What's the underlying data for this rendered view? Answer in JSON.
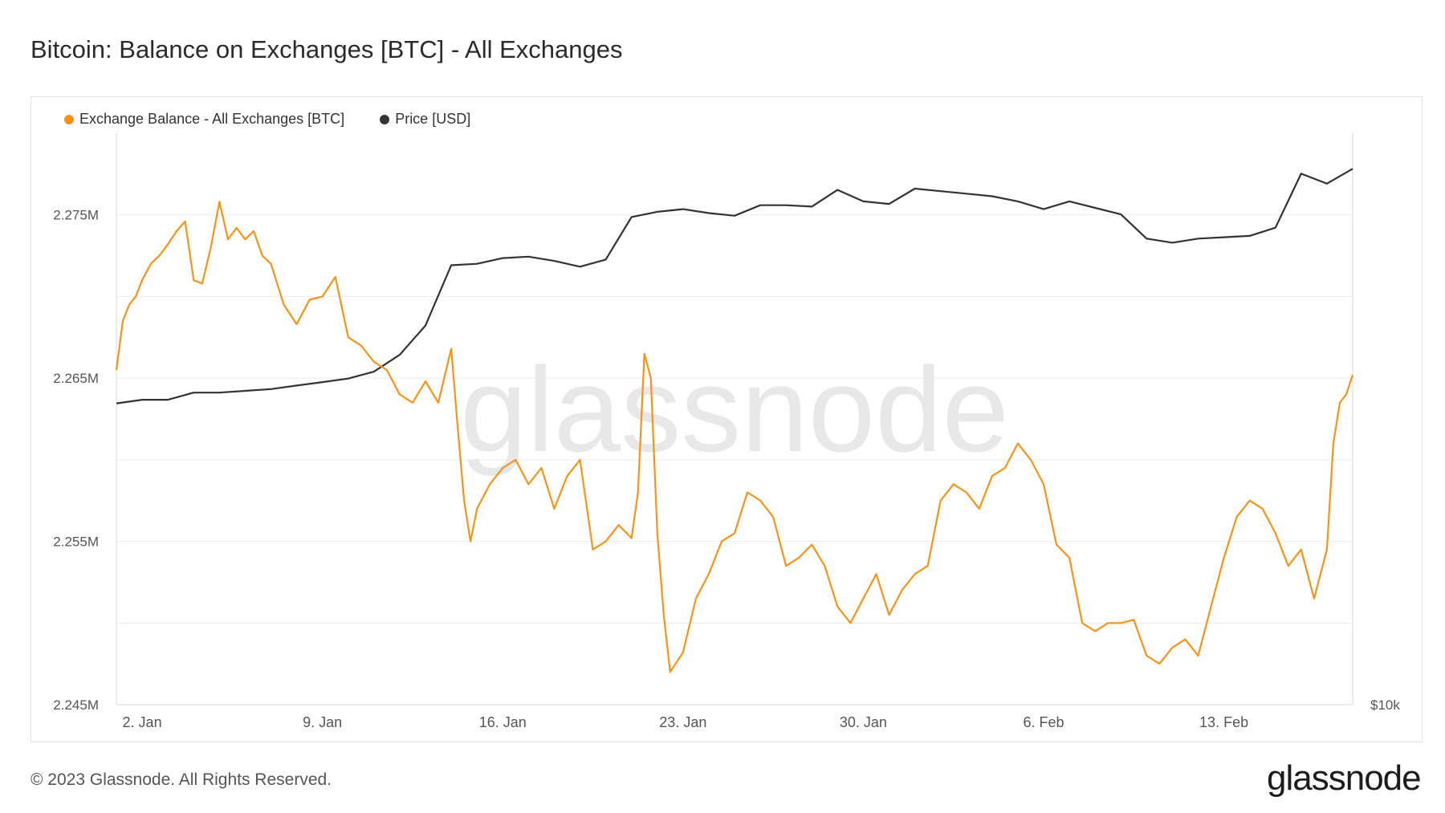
{
  "header": {
    "title": "Bitcoin: Balance on Exchanges [BTC] - All Exchanges"
  },
  "footer": {
    "copyright": "© 2023 Glassnode. All Rights Reserved.",
    "logo_text": "glassnode"
  },
  "watermark": "glassnode",
  "colors": {
    "balance": "#f7931a",
    "price": "#333333",
    "grid": "#ececec",
    "axis": "#d8d8d8",
    "tick_text": "#555555",
    "watermark": "#e8e8e8"
  },
  "chart_data": {
    "type": "line",
    "title": "Bitcoin: Balance on Exchanges [BTC] - All Exchanges",
    "legend_position": "top-left",
    "grid": true,
    "x_range": [
      "2023-01-01",
      "2023-02-18"
    ],
    "x_ticks": [
      {
        "date": "2023-01-02",
        "label": "2. Jan"
      },
      {
        "date": "2023-01-09",
        "label": "9. Jan"
      },
      {
        "date": "2023-01-16",
        "label": "16. Jan"
      },
      {
        "date": "2023-01-23",
        "label": "23. Jan"
      },
      {
        "date": "2023-01-30",
        "label": "30. Jan"
      },
      {
        "date": "2023-02-06",
        "label": "6. Feb"
      },
      {
        "date": "2023-02-13",
        "label": "13. Feb"
      }
    ],
    "y_left": {
      "range": [
        2245000,
        2280000
      ],
      "ticks": [
        {
          "value": 2245000,
          "label": "2.245M"
        },
        {
          "value": 2255000,
          "label": "2.255M"
        },
        {
          "value": 2265000,
          "label": "2.265M"
        },
        {
          "value": 2275000,
          "label": "2.275M"
        }
      ]
    },
    "y_right": {
      "scale": "log",
      "range": [
        10000,
        26000
      ],
      "ticks": [
        {
          "value": 10000,
          "label": "$10k"
        }
      ]
    },
    "series": [
      {
        "name": "Exchange Balance - All Exchanges [BTC]",
        "axis": "left",
        "points": [
          [
            "2023-01-01T00:00",
            2265500
          ],
          [
            "2023-01-01T06:00",
            2268500
          ],
          [
            "2023-01-01T12:00",
            2269500
          ],
          [
            "2023-01-01T18:00",
            2270000
          ],
          [
            "2023-01-02T00:00",
            2271000
          ],
          [
            "2023-01-02T08:00",
            2272000
          ],
          [
            "2023-01-02T16:00",
            2272500
          ],
          [
            "2023-01-03T00:00",
            2273200
          ],
          [
            "2023-01-03T08:00",
            2274000
          ],
          [
            "2023-01-03T16:00",
            2274600
          ],
          [
            "2023-01-04T00:00",
            2271000
          ],
          [
            "2023-01-04T08:00",
            2270800
          ],
          [
            "2023-01-04T16:00",
            2273000
          ],
          [
            "2023-01-05T00:00",
            2275800
          ],
          [
            "2023-01-05T08:00",
            2273500
          ],
          [
            "2023-01-05T16:00",
            2274200
          ],
          [
            "2023-01-06T00:00",
            2273500
          ],
          [
            "2023-01-06T08:00",
            2274000
          ],
          [
            "2023-01-06T16:00",
            2272500
          ],
          [
            "2023-01-07T00:00",
            2272000
          ],
          [
            "2023-01-07T12:00",
            2269500
          ],
          [
            "2023-01-08T00:00",
            2268300
          ],
          [
            "2023-01-08T12:00",
            2269800
          ],
          [
            "2023-01-09T00:00",
            2270000
          ],
          [
            "2023-01-09T12:00",
            2271200
          ],
          [
            "2023-01-10T00:00",
            2267500
          ],
          [
            "2023-01-10T12:00",
            2267000
          ],
          [
            "2023-01-11T00:00",
            2266000
          ],
          [
            "2023-01-11T12:00",
            2265500
          ],
          [
            "2023-01-12T00:00",
            2264000
          ],
          [
            "2023-01-12T12:00",
            2263500
          ],
          [
            "2023-01-13T00:00",
            2264800
          ],
          [
            "2023-01-13T12:00",
            2263500
          ],
          [
            "2023-01-14T00:00",
            2266800
          ],
          [
            "2023-01-14T06:00",
            2262000
          ],
          [
            "2023-01-14T12:00",
            2257500
          ],
          [
            "2023-01-14T18:00",
            2255000
          ],
          [
            "2023-01-15T00:00",
            2257000
          ],
          [
            "2023-01-15T12:00",
            2258500
          ],
          [
            "2023-01-16T00:00",
            2259500
          ],
          [
            "2023-01-16T12:00",
            2260000
          ],
          [
            "2023-01-17T00:00",
            2258500
          ],
          [
            "2023-01-17T12:00",
            2259500
          ],
          [
            "2023-01-18T00:00",
            2257000
          ],
          [
            "2023-01-18T12:00",
            2259000
          ],
          [
            "2023-01-19T00:00",
            2260000
          ],
          [
            "2023-01-19T12:00",
            2254500
          ],
          [
            "2023-01-20T00:00",
            2255000
          ],
          [
            "2023-01-20T12:00",
            2256000
          ],
          [
            "2023-01-21T00:00",
            2255200
          ],
          [
            "2023-01-21T06:00",
            2258000
          ],
          [
            "2023-01-21T12:00",
            2266500
          ],
          [
            "2023-01-21T18:00",
            2265000
          ],
          [
            "2023-01-22T00:00",
            2255500
          ],
          [
            "2023-01-22T06:00",
            2250500
          ],
          [
            "2023-01-22T12:00",
            2247000
          ],
          [
            "2023-01-23T00:00",
            2248200
          ],
          [
            "2023-01-23T12:00",
            2251500
          ],
          [
            "2023-01-24T00:00",
            2253000
          ],
          [
            "2023-01-24T12:00",
            2255000
          ],
          [
            "2023-01-25T00:00",
            2255500
          ],
          [
            "2023-01-25T12:00",
            2258000
          ],
          [
            "2023-01-26T00:00",
            2257500
          ],
          [
            "2023-01-26T12:00",
            2256500
          ],
          [
            "2023-01-27T00:00",
            2253500
          ],
          [
            "2023-01-27T12:00",
            2254000
          ],
          [
            "2023-01-28T00:00",
            2254800
          ],
          [
            "2023-01-28T12:00",
            2253500
          ],
          [
            "2023-01-29T00:00",
            2251000
          ],
          [
            "2023-01-29T12:00",
            2250000
          ],
          [
            "2023-01-30T00:00",
            2251500
          ],
          [
            "2023-01-30T12:00",
            2253000
          ],
          [
            "2023-01-31T00:00",
            2250500
          ],
          [
            "2023-01-31T12:00",
            2252000
          ],
          [
            "2023-02-01T00:00",
            2253000
          ],
          [
            "2023-02-01T12:00",
            2253500
          ],
          [
            "2023-02-02T00:00",
            2257500
          ],
          [
            "2023-02-02T12:00",
            2258500
          ],
          [
            "2023-02-03T00:00",
            2258000
          ],
          [
            "2023-02-03T12:00",
            2257000
          ],
          [
            "2023-02-04T00:00",
            2259000
          ],
          [
            "2023-02-04T12:00",
            2259500
          ],
          [
            "2023-02-05T00:00",
            2261000
          ],
          [
            "2023-02-05T12:00",
            2260000
          ],
          [
            "2023-02-06T00:00",
            2258500
          ],
          [
            "2023-02-06T12:00",
            2254800
          ],
          [
            "2023-02-07T00:00",
            2254000
          ],
          [
            "2023-02-07T12:00",
            2250000
          ],
          [
            "2023-02-08T00:00",
            2249500
          ],
          [
            "2023-02-08T12:00",
            2250000
          ],
          [
            "2023-02-09T00:00",
            2250000
          ],
          [
            "2023-02-09T12:00",
            2250200
          ],
          [
            "2023-02-10T00:00",
            2248000
          ],
          [
            "2023-02-10T12:00",
            2247500
          ],
          [
            "2023-02-11T00:00",
            2248500
          ],
          [
            "2023-02-11T12:00",
            2249000
          ],
          [
            "2023-02-12T00:00",
            2248000
          ],
          [
            "2023-02-12T12:00",
            2251000
          ],
          [
            "2023-02-13T00:00",
            2254000
          ],
          [
            "2023-02-13T12:00",
            2256500
          ],
          [
            "2023-02-14T00:00",
            2257500
          ],
          [
            "2023-02-14T12:00",
            2257000
          ],
          [
            "2023-02-15T00:00",
            2255500
          ],
          [
            "2023-02-15T12:00",
            2253500
          ],
          [
            "2023-02-16T00:00",
            2254500
          ],
          [
            "2023-02-16T12:00",
            2251500
          ],
          [
            "2023-02-17T00:00",
            2254500
          ],
          [
            "2023-02-17T06:00",
            2261000
          ],
          [
            "2023-02-17T12:00",
            2263500
          ],
          [
            "2023-02-17T18:00",
            2264000
          ],
          [
            "2023-02-18T00:00",
            2265200
          ]
        ]
      },
      {
        "name": "Price [USD]",
        "axis": "right",
        "points": [
          [
            "2023-01-01T00:00",
            16550
          ],
          [
            "2023-01-02T00:00",
            16650
          ],
          [
            "2023-01-03T00:00",
            16650
          ],
          [
            "2023-01-04T00:00",
            16850
          ],
          [
            "2023-01-05T00:00",
            16850
          ],
          [
            "2023-01-06T00:00",
            16900
          ],
          [
            "2023-01-07T00:00",
            16950
          ],
          [
            "2023-01-08T00:00",
            17050
          ],
          [
            "2023-01-09T00:00",
            17150
          ],
          [
            "2023-01-10T00:00",
            17250
          ],
          [
            "2023-01-11T00:00",
            17450
          ],
          [
            "2023-01-12T00:00",
            17950
          ],
          [
            "2023-01-13T00:00",
            18850
          ],
          [
            "2023-01-14T00:00",
            20850
          ],
          [
            "2023-01-15T00:00",
            20900
          ],
          [
            "2023-01-16T00:00",
            21100
          ],
          [
            "2023-01-17T00:00",
            21150
          ],
          [
            "2023-01-18T00:00",
            21000
          ],
          [
            "2023-01-19T00:00",
            20800
          ],
          [
            "2023-01-20T00:00",
            21050
          ],
          [
            "2023-01-21T00:00",
            22600
          ],
          [
            "2023-01-22T00:00",
            22800
          ],
          [
            "2023-01-23T00:00",
            22900
          ],
          [
            "2023-01-24T00:00",
            22750
          ],
          [
            "2023-01-25T00:00",
            22650
          ],
          [
            "2023-01-26T00:00",
            23050
          ],
          [
            "2023-01-27T00:00",
            23050
          ],
          [
            "2023-01-28T00:00",
            23000
          ],
          [
            "2023-01-29T00:00",
            23650
          ],
          [
            "2023-01-30T00:00",
            23200
          ],
          [
            "2023-01-31T00:00",
            23100
          ],
          [
            "2023-02-01T00:00",
            23700
          ],
          [
            "2023-02-02T00:00",
            23600
          ],
          [
            "2023-02-03T00:00",
            23500
          ],
          [
            "2023-02-04T00:00",
            23400
          ],
          [
            "2023-02-05T00:00",
            23200
          ],
          [
            "2023-02-06T00:00",
            22900
          ],
          [
            "2023-02-07T00:00",
            23200
          ],
          [
            "2023-02-08T00:00",
            22950
          ],
          [
            "2023-02-09T00:00",
            22700
          ],
          [
            "2023-02-10T00:00",
            21800
          ],
          [
            "2023-02-11T00:00",
            21650
          ],
          [
            "2023-02-12T00:00",
            21800
          ],
          [
            "2023-02-13T00:00",
            21850
          ],
          [
            "2023-02-14T00:00",
            21900
          ],
          [
            "2023-02-15T00:00",
            22200
          ],
          [
            "2023-02-16T00:00",
            24300
          ],
          [
            "2023-02-17T00:00",
            23900
          ],
          [
            "2023-02-18T00:00",
            24500
          ]
        ]
      }
    ]
  }
}
